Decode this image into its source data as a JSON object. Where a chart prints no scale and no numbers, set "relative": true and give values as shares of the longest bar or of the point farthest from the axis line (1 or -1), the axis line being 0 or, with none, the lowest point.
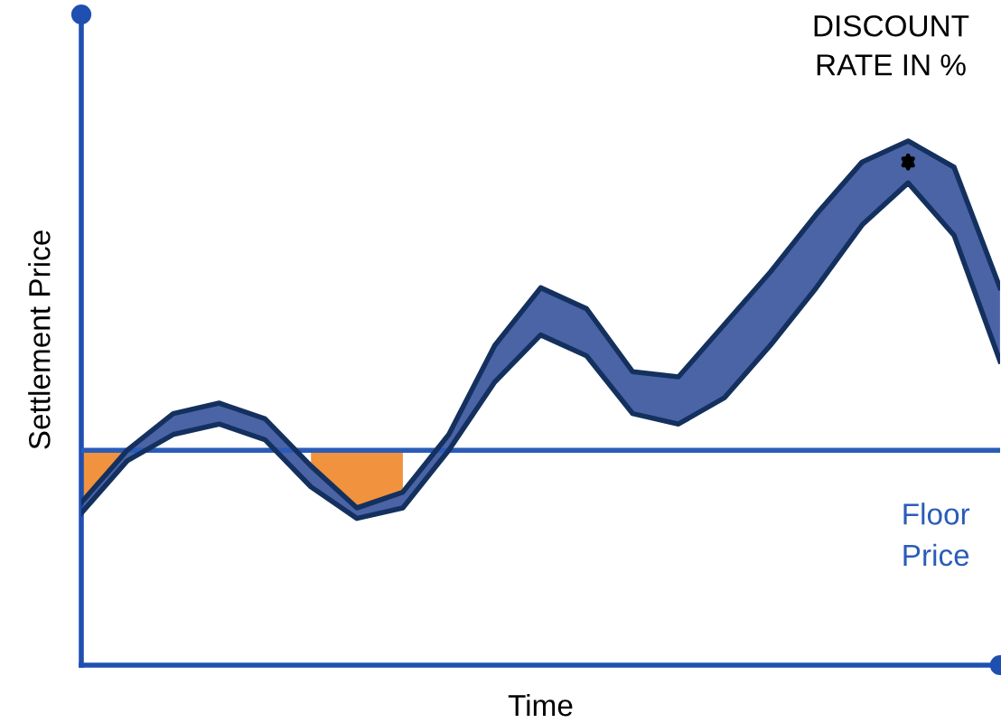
{
  "chart_data": {
    "type": "line",
    "relative": true,
    "xlabel": "Time",
    "ylabel": "Settlement Price",
    "categories": [
      null,
      null,
      null,
      null,
      null,
      null,
      null,
      null,
      null,
      null,
      null,
      null,
      null,
      null,
      null,
      null,
      null,
      null,
      null,
      null,
      null
    ],
    "series": [
      {
        "color": "#14305e",
        "values": [
          0.31,
          0.41,
          0.48,
          0.5,
          0.47,
          0.38,
          0.3,
          0.33,
          0.44,
          0.61,
          0.72,
          0.68,
          0.56,
          0.55,
          0.65,
          0.75,
          0.86,
          0.96,
          1.0,
          0.95,
          0.72
        ],
        "upper": [
          0.31,
          0.41,
          0.48,
          0.5,
          0.47,
          0.38,
          0.3,
          0.33,
          0.44,
          0.61,
          0.72,
          0.68,
          0.56,
          0.55,
          0.65,
          0.75,
          0.86,
          0.96,
          1.0,
          0.95,
          0.72
        ],
        "lower": [
          0.29,
          0.39,
          0.44,
          0.46,
          0.43,
          0.34,
          0.28,
          0.3,
          0.41,
          0.54,
          0.63,
          0.59,
          0.48,
          0.46,
          0.51,
          0.61,
          0.72,
          0.84,
          0.92,
          0.82,
          0.58
        ]
      },
      {
        "color": "#14305e",
        "values": [
          0.29,
          0.39,
          0.44,
          0.46,
          0.43,
          0.34,
          0.28,
          0.3,
          0.41,
          0.54,
          0.63,
          0.59,
          0.48,
          0.46,
          0.51,
          0.61,
          0.72,
          0.84,
          0.92,
          0.82,
          0.58
        ],
        "upper": [
          0.41,
          0.41,
          null,
          null,
          null,
          0.41,
          0.41,
          0.41,
          null,
          null,
          null,
          null,
          null,
          null,
          null,
          null,
          null,
          null,
          null,
          null,
          null
        ],
        "lower": [
          0.29,
          0.39,
          null,
          null,
          null,
          0.34,
          0.28,
          0.3,
          null,
          null,
          null,
          null,
          null,
          null,
          null,
          null,
          null,
          null,
          null,
          null,
          null
        ]
      }
    ],
    "ref_lines": [
      {
        "axis": "y",
        "value": 0.41,
        "label": "Floor\nPrice",
        "color": "#2a5cb8"
      }
    ],
    "annotations": [
      "DISCOUNT\nRATE IN %"
    ]
  }
}
